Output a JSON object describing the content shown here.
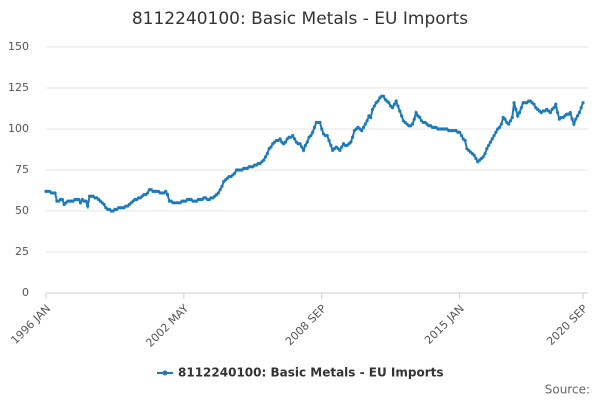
{
  "chart_data": {
    "type": "line",
    "title": "8112240100: Basic Metals - EU Imports",
    "source": "Source:",
    "categories": [
      "1996 JAN",
      null,
      null,
      null,
      null,
      null,
      null,
      null,
      null,
      null,
      null,
      null,
      null,
      null,
      null,
      null,
      null,
      null,
      null,
      null,
      null,
      null,
      null,
      null,
      null,
      null,
      null,
      null,
      null,
      null,
      null,
      null,
      null,
      null,
      null,
      null,
      null,
      null,
      null,
      null,
      null,
      null,
      null,
      null,
      null,
      null,
      null,
      null,
      null,
      null,
      null,
      null,
      null,
      null,
      null,
      null,
      null,
      null,
      null,
      null,
      null,
      null,
      null,
      null,
      null,
      null,
      null,
      null,
      null,
      null,
      null,
      null,
      null,
      null,
      null,
      null,
      "2002 MAY",
      null,
      null,
      null,
      null,
      null,
      null,
      null,
      null,
      null,
      null,
      null,
      null,
      null,
      null,
      null,
      null,
      null,
      null,
      null,
      null,
      null,
      null,
      null,
      null,
      null,
      null,
      null,
      null,
      null,
      null,
      null,
      null,
      null,
      null,
      null,
      null,
      null,
      null,
      null,
      null,
      null,
      null,
      null,
      null,
      null,
      null,
      null,
      null,
      null,
      null,
      null,
      null,
      null,
      null,
      null,
      null,
      null,
      null,
      null,
      null,
      null,
      null,
      null,
      null,
      null,
      null,
      null,
      null,
      null,
      null,
      null,
      null,
      null,
      null,
      null,
      "2008 SEP",
      null,
      null,
      null,
      null,
      null,
      null,
      null,
      null,
      null,
      null,
      null,
      null,
      null,
      null,
      null,
      null,
      null,
      null,
      null,
      null,
      null,
      null,
      null,
      null,
      null,
      null,
      null,
      null,
      null,
      null,
      null,
      null,
      null,
      null,
      null,
      null,
      null,
      null,
      null,
      null,
      null,
      null,
      null,
      null,
      null,
      null,
      null,
      null,
      null,
      null,
      null,
      null,
      null,
      null,
      null,
      null,
      null,
      null,
      null,
      null,
      null,
      null,
      null,
      null,
      null,
      null,
      null,
      null,
      null,
      null,
      null,
      null,
      null,
      null,
      null,
      "2015 JAN",
      null,
      null,
      null,
      null,
      null,
      null,
      null,
      null,
      null,
      null,
      null,
      null,
      null,
      null,
      null,
      null,
      null,
      null,
      null,
      null,
      null,
      null,
      null,
      null,
      null,
      null,
      null,
      null,
      null,
      null,
      null,
      null,
      null,
      null,
      null,
      null,
      null,
      null,
      null,
      null,
      null,
      null,
      null,
      null,
      null,
      null,
      null,
      null,
      null,
      null,
      null,
      null,
      null,
      null,
      null,
      null,
      null,
      null,
      null,
      null,
      null,
      null,
      null,
      null,
      null,
      null,
      null,
      "2020 SEP"
    ],
    "series": [
      {
        "name": "8112240100: Basic Metals - EU Imports",
        "color": "#1f7ab8",
        "values": [
          62,
          62,
          62,
          61,
          61,
          61,
          56,
          56,
          57,
          57,
          54,
          55,
          56,
          56,
          56,
          56,
          57,
          57,
          57,
          55,
          57,
          56,
          56,
          53,
          59,
          59,
          59,
          58,
          58,
          57,
          56,
          55,
          54,
          52,
          51,
          51,
          50,
          50,
          51,
          51,
          52,
          52,
          52,
          52,
          53,
          53,
          54,
          55,
          56,
          57,
          57,
          58,
          58,
          59,
          60,
          60,
          61,
          63,
          63,
          62,
          62,
          62,
          62,
          61,
          61,
          61,
          62,
          60,
          56,
          56,
          55,
          55,
          55,
          55,
          55,
          56,
          56,
          56,
          57,
          57,
          57,
          56,
          56,
          56,
          57,
          57,
          57,
          58,
          58,
          57,
          57,
          58,
          58,
          59,
          60,
          61,
          63,
          65,
          68,
          69,
          70,
          71,
          71,
          72,
          73,
          75,
          75,
          75,
          75,
          76,
          76,
          76,
          77,
          77,
          77,
          78,
          78,
          79,
          79,
          80,
          81,
          83,
          85,
          88,
          89,
          91,
          92,
          93,
          93,
          94,
          92,
          91,
          92,
          94,
          95,
          95,
          96,
          94,
          92,
          91,
          91,
          89,
          87,
          90,
          92,
          95,
          96,
          98,
          101,
          104,
          104,
          104,
          100,
          97,
          96,
          96,
          93,
          90,
          87,
          88,
          89,
          88,
          87,
          89,
          91,
          90,
          90,
          91,
          92,
          95,
          99,
          100,
          101,
          100,
          99,
          101,
          103,
          105,
          108,
          107,
          112,
          114,
          116,
          117,
          119,
          120,
          120,
          118,
          117,
          116,
          114,
          113,
          115,
          117,
          114,
          111,
          108,
          105,
          104,
          103,
          102,
          102,
          103,
          106,
          110,
          108,
          107,
          105,
          104,
          104,
          103,
          102,
          102,
          101,
          101,
          101,
          100,
          100,
          100,
          100,
          100,
          100,
          99,
          99,
          99,
          99,
          99,
          98,
          98,
          96,
          94,
          93,
          88,
          87,
          86,
          85,
          84,
          82,
          80,
          81,
          82,
          83,
          85,
          88,
          90,
          92,
          94,
          96,
          98,
          100,
          101,
          103,
          107,
          106,
          104,
          103,
          105,
          107,
          116,
          112,
          108,
          110,
          113,
          116,
          116,
          116,
          117,
          117,
          116,
          115,
          113,
          112,
          111,
          110,
          111,
          111,
          112,
          111,
          110,
          112,
          113,
          115,
          110,
          106,
          107,
          107,
          108,
          109,
          109,
          110,
          106,
          103,
          106,
          108,
          110,
          113,
          116
        ]
      }
    ],
    "ylim": [
      0,
      150
    ],
    "yticks": [
      0,
      25,
      50,
      75,
      100,
      125,
      150
    ],
    "grid": true,
    "legend": "bottom"
  }
}
